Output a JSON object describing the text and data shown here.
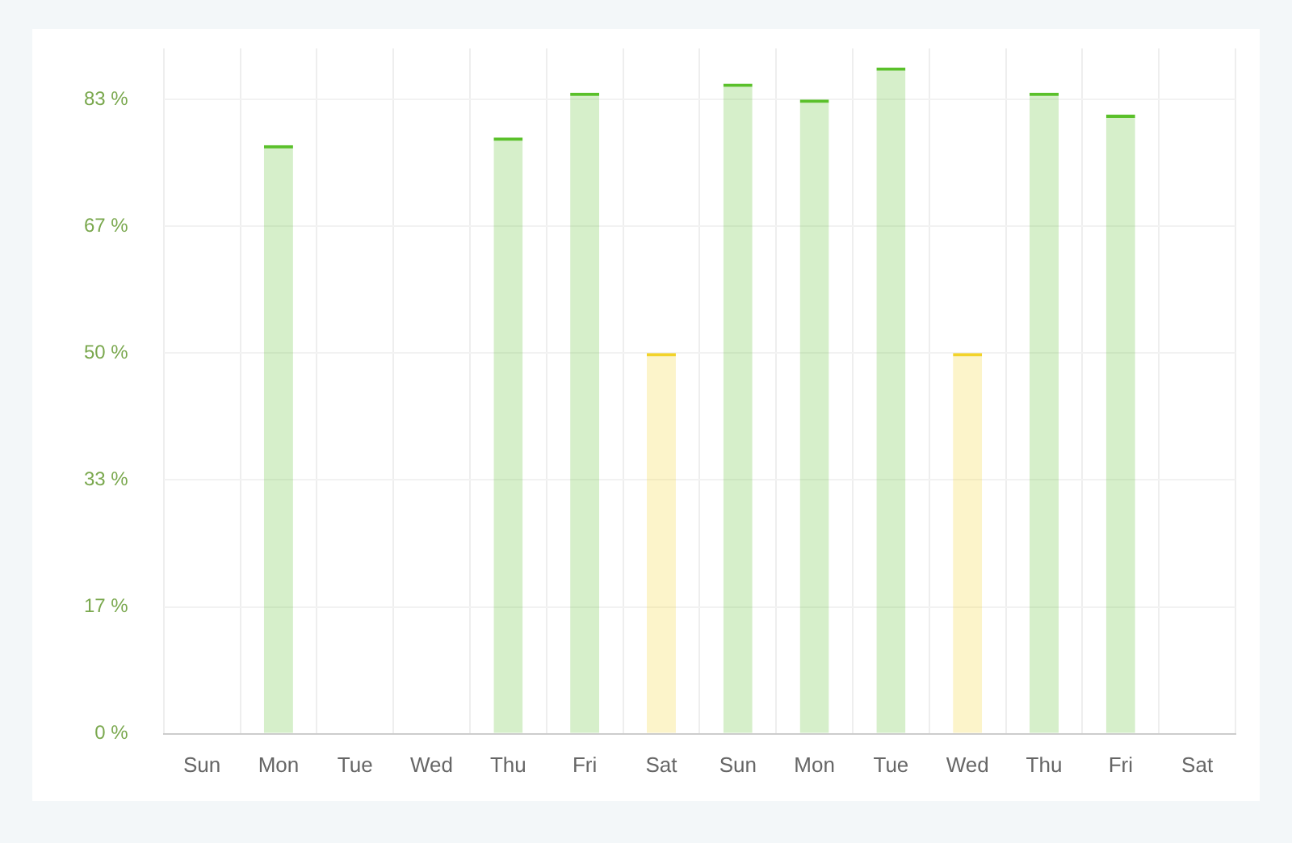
{
  "chart_data": {
    "type": "bar",
    "categories": [
      "Sun",
      "Mon",
      "Tue",
      "Wed",
      "Thu",
      "Fri",
      "Sat",
      "Sun",
      "Mon",
      "Tue",
      "Wed",
      "Thu",
      "Fri",
      "Sat"
    ],
    "values": [
      null,
      77.3,
      0,
      0,
      78.3,
      84.2,
      50,
      85.4,
      83.3,
      87.5,
      50,
      84.2,
      81.3,
      null
    ],
    "colors": [
      "#5ac02a",
      "#5ac02a",
      "#5ac02a",
      "#5ac02a",
      "#5ac02a",
      "#5ac02a",
      "#f2d32a",
      "#5ac02a",
      "#5ac02a",
      "#5ac02a",
      "#f2d32a",
      "#5ac02a",
      "#5ac02a",
      "#5ac02a"
    ],
    "ylim": [
      0,
      90
    ],
    "yticks": [
      {
        "value": 0,
        "label": "0 %"
      },
      {
        "value": 16.67,
        "label": "17 %"
      },
      {
        "value": 33.33,
        "label": "33 %"
      },
      {
        "value": 50,
        "label": "50 %"
      },
      {
        "value": 66.67,
        "label": "67 %"
      },
      {
        "value": 83.33,
        "label": "83 %"
      }
    ],
    "grid": true,
    "legend": false
  }
}
